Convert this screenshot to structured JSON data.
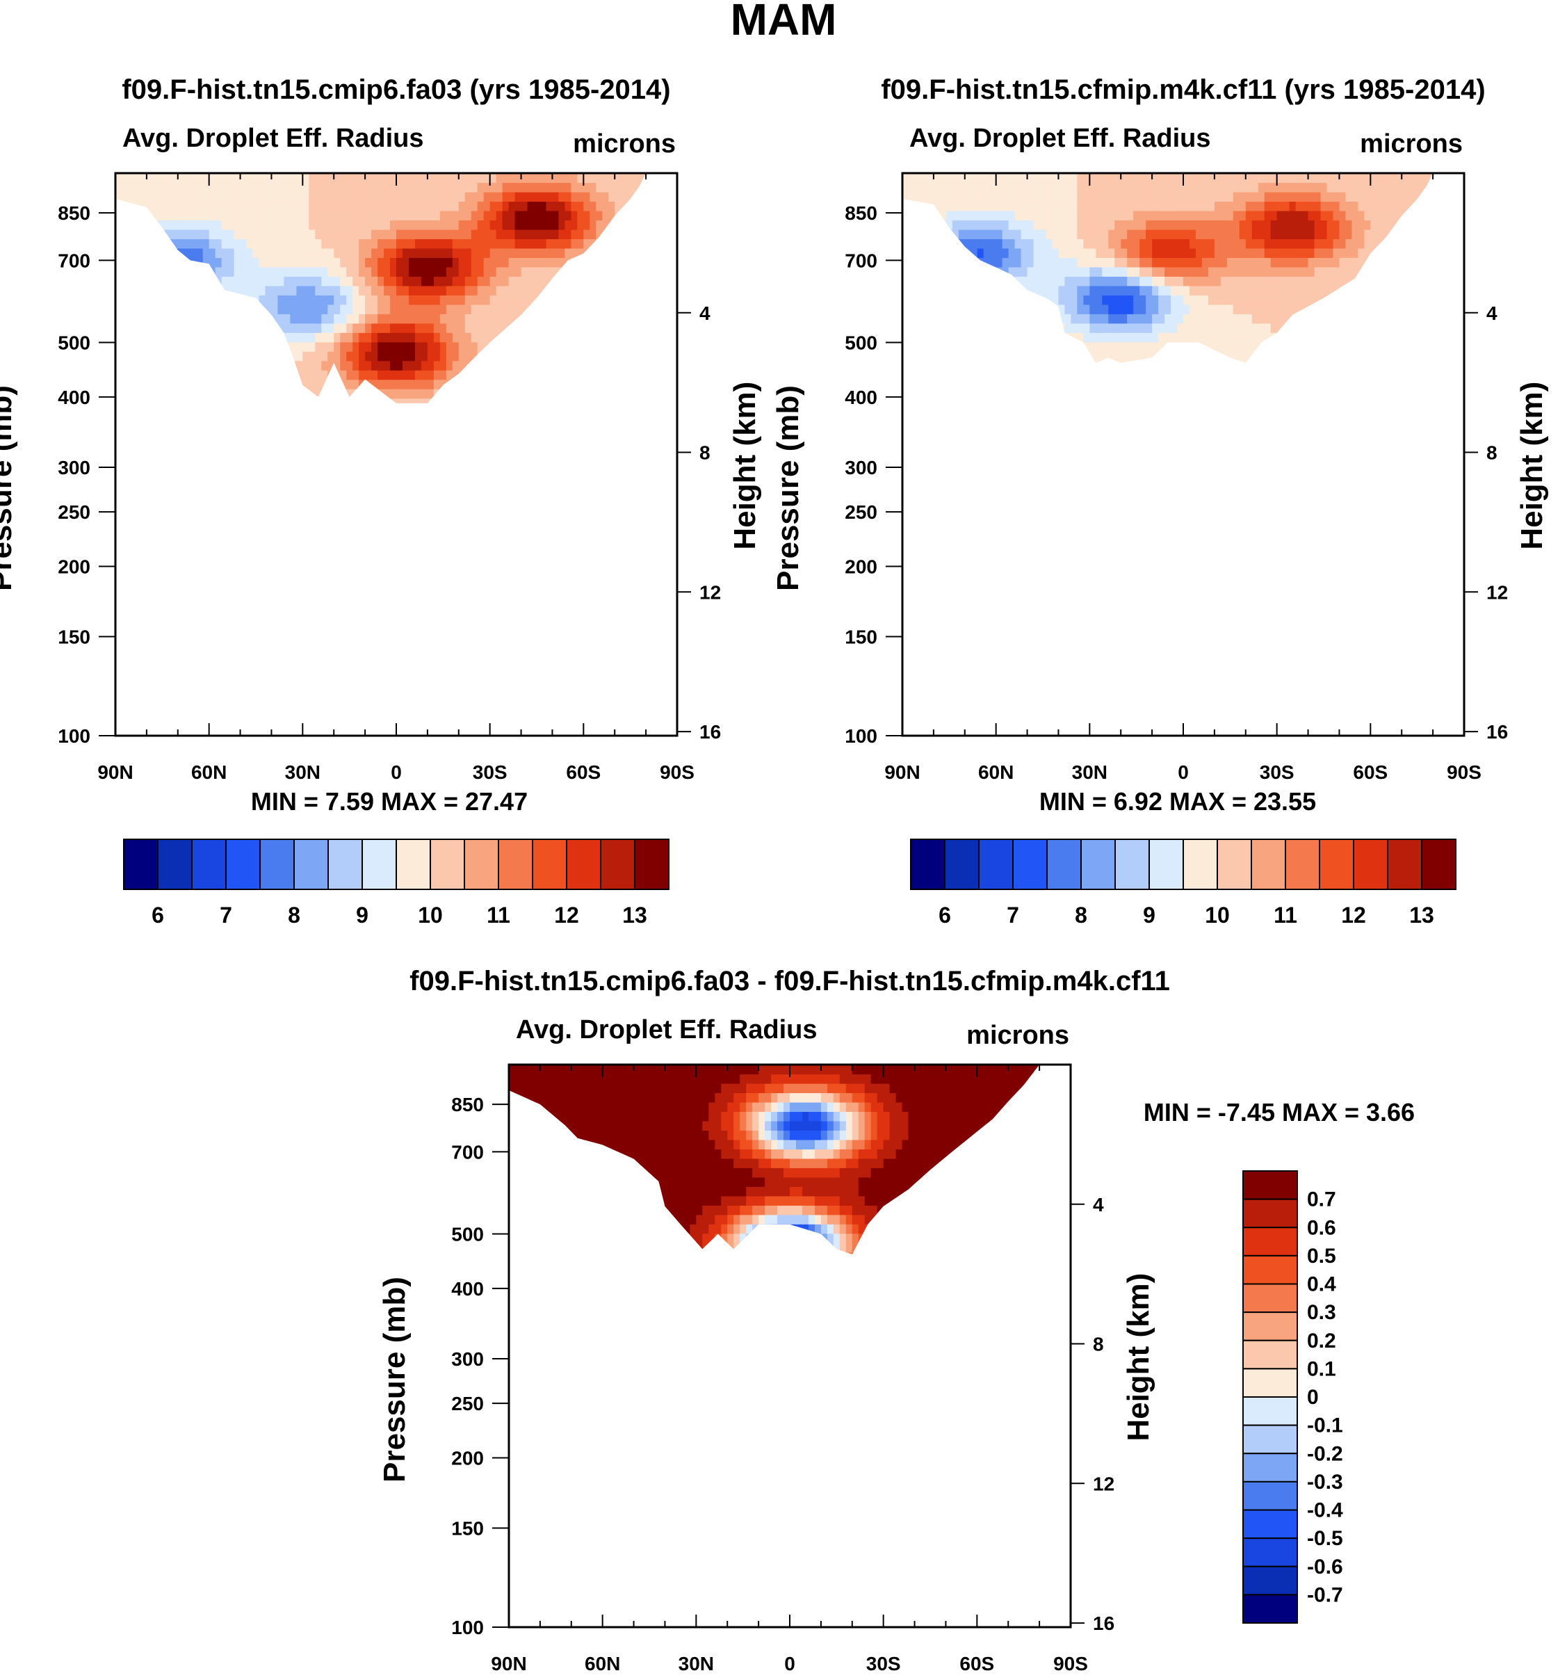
{
  "title": "MAM",
  "chart_data": [
    {
      "type": "heatmap",
      "title": "f09.F-hist.tn15.cmip6.fa03 (yrs 1985-2014)",
      "subtitle_left": "Avg. Droplet Eff. Radius",
      "units": "microns",
      "xlabel": "",
      "ylabel": "Pressure (mb)",
      "y2label": "Height (km)",
      "xticks": [
        "90N",
        "60N",
        "30N",
        "0",
        "30S",
        "60S",
        "90S"
      ],
      "xlim": [
        90,
        -90
      ],
      "yticks": [
        100,
        150,
        200,
        250,
        300,
        400,
        500,
        700,
        850
      ],
      "ylim": [
        1000,
        100
      ],
      "y2ticks": [
        16,
        12,
        8,
        4
      ],
      "min_max": "MIN =   7.59  MAX =  27.47",
      "colorbar": {
        "orientation": "horizontal",
        "labels": [
          "6",
          "7",
          "8",
          "9",
          "10",
          "11",
          "12",
          "13"
        ],
        "levels": [
          5.5,
          6,
          6.5,
          7,
          7.5,
          8,
          8.5,
          9,
          9.5,
          10,
          10.5,
          11,
          11.5,
          12,
          12.5,
          13,
          13.5
        ]
      },
      "features": [
        {
          "kind": "high",
          "lat": -10,
          "p": 680,
          "value": 13.5
        },
        {
          "kind": "high",
          "lat": -45,
          "p": 830,
          "value": 13.5
        },
        {
          "kind": "high",
          "lat": 0,
          "p": 480,
          "value": 13.5
        },
        {
          "kind": "low",
          "lat": 28,
          "p": 580,
          "value": 8.0
        },
        {
          "kind": "low",
          "lat": 70,
          "p": 700,
          "value": 7.5
        }
      ]
    },
    {
      "type": "heatmap",
      "title": "f09.F-hist.tn15.cfmip.m4k.cf11 (yrs 1985-2014)",
      "subtitle_left": "Avg. Droplet Eff. Radius",
      "units": "microns",
      "xlabel": "",
      "ylabel": "Pressure (mb)",
      "y2label": "Height (km)",
      "xticks": [
        "90N",
        "60N",
        "30N",
        "0",
        "30S",
        "60S",
        "90S"
      ],
      "xlim": [
        90,
        -90
      ],
      "yticks": [
        100,
        150,
        200,
        250,
        300,
        400,
        500,
        700,
        850
      ],
      "ylim": [
        1000,
        100
      ],
      "y2ticks": [
        16,
        12,
        8,
        4
      ],
      "min_max": "MIN =   6.92  MAX =  23.55",
      "colorbar": {
        "orientation": "horizontal",
        "labels": [
          "6",
          "7",
          "8",
          "9",
          "10",
          "11",
          "12",
          "13"
        ],
        "levels": [
          5.5,
          6,
          6.5,
          7,
          7.5,
          8,
          8.5,
          9,
          9.5,
          10,
          10.5,
          11,
          11.5,
          12,
          12.5,
          13,
          13.5
        ]
      },
      "features": [
        {
          "kind": "high",
          "lat": -35,
          "p": 800,
          "value": 13.0
        },
        {
          "kind": "high",
          "lat": 5,
          "p": 720,
          "value": 12.5
        },
        {
          "kind": "low",
          "lat": 20,
          "p": 600,
          "value": 7.0
        },
        {
          "kind": "low",
          "lat": 65,
          "p": 720,
          "value": 7.5
        }
      ]
    },
    {
      "type": "heatmap",
      "title": "f09.F-hist.tn15.cmip6.fa03 - f09.F-hist.tn15.cfmip.m4k.cf11",
      "subtitle_left": "Avg. Droplet Eff. Radius",
      "units": "microns",
      "xlabel": "",
      "ylabel": "Pressure (mb)",
      "y2label": "Height (km)",
      "xticks": [
        "90N",
        "60N",
        "30N",
        "0",
        "30S",
        "60S",
        "90S"
      ],
      "xlim": [
        90,
        -90
      ],
      "yticks": [
        100,
        150,
        200,
        250,
        300,
        400,
        500,
        700,
        850
      ],
      "ylim": [
        1000,
        100
      ],
      "y2ticks": [
        16,
        12,
        8,
        4
      ],
      "min_max": "MIN =  -7.45  MAX =    3.66",
      "colorbar": {
        "orientation": "vertical",
        "labels": [
          "0.7",
          "0.6",
          "0.5",
          "0.4",
          "0.3",
          "0.2",
          "0.1",
          "0",
          "-0.1",
          "-0.2",
          "-0.3",
          "-0.4",
          "-0.5",
          "-0.6",
          "-0.7"
        ],
        "levels": [
          0.75,
          0.7,
          0.6,
          0.5,
          0.4,
          0.3,
          0.2,
          0.1,
          0,
          -0.1,
          -0.2,
          -0.3,
          -0.4,
          -0.5,
          -0.6,
          -0.7,
          -0.75
        ]
      },
      "features": [
        {
          "kind": "high",
          "lat": 10,
          "p": 650,
          "value": 0.8
        },
        {
          "kind": "high",
          "lat": 60,
          "p": 800,
          "value": 0.8
        },
        {
          "kind": "low",
          "lat": 0,
          "p": 480,
          "value": -0.8
        },
        {
          "kind": "low",
          "lat": -5,
          "p": 780,
          "value": -0.6
        }
      ]
    }
  ],
  "palette": [
    "#00007f",
    "#0a2eb4",
    "#1946e0",
    "#2255f5",
    "#4a7cf0",
    "#7da7f5",
    "#b3cdfa",
    "#d9ebfc",
    "#fdebd9",
    "#fbc7ad",
    "#f8a47e",
    "#f47a4d",
    "#ef5220",
    "#de3210",
    "#b91e0b",
    "#800000"
  ]
}
